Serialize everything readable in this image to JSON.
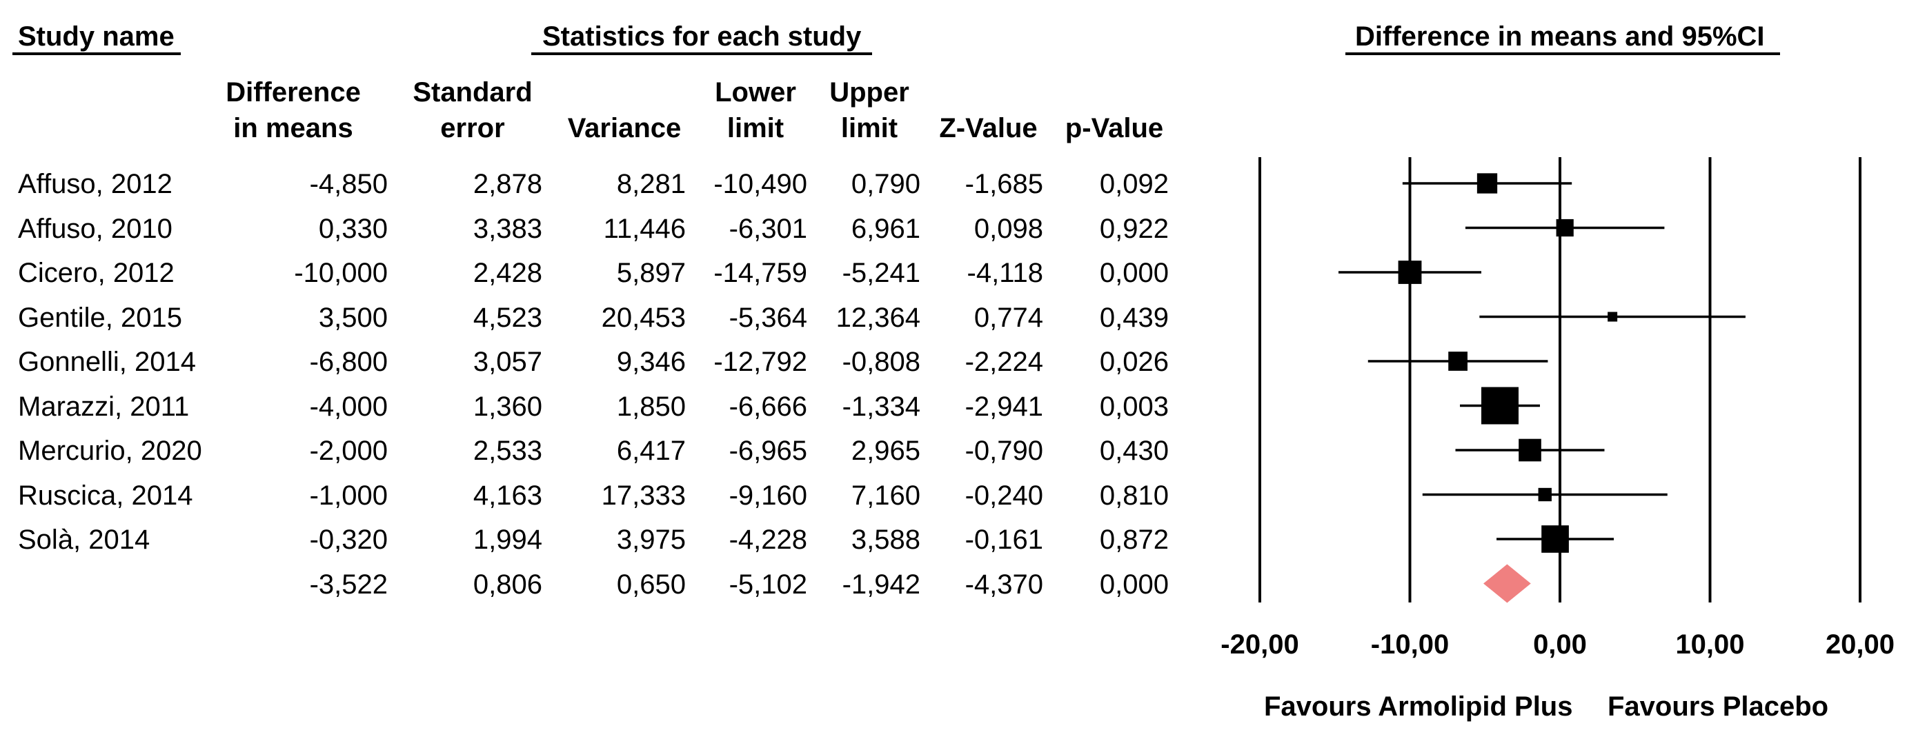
{
  "headers": {
    "study_name": "Study name",
    "statistics": "Statistics for each study",
    "forest": "Difference in means and 95%CI"
  },
  "columns": [
    {
      "line1": "Difference",
      "line2": "in means"
    },
    {
      "line1": "Standard",
      "line2": "error"
    },
    {
      "line1": "",
      "line2": "Variance"
    },
    {
      "line1": "Lower",
      "line2": "limit"
    },
    {
      "line1": "Upper",
      "line2": "limit"
    },
    {
      "line1": "",
      "line2": "Z-Value"
    },
    {
      "line1": "",
      "line2": "p-Value"
    }
  ],
  "rows": [
    {
      "name": "Affuso, 2012",
      "diff": "-4,850",
      "se": "2,878",
      "var": "8,281",
      "lower": "-10,490",
      "upper": "0,790",
      "z": "-1,685",
      "p": "0,092"
    },
    {
      "name": "Affuso, 2010",
      "diff": "0,330",
      "se": "3,383",
      "var": "11,446",
      "lower": "-6,301",
      "upper": "6,961",
      "z": "0,098",
      "p": "0,922"
    },
    {
      "name": "Cicero, 2012",
      "diff": "-10,000",
      "se": "2,428",
      "var": "5,897",
      "lower": "-14,759",
      "upper": "-5,241",
      "z": "-4,118",
      "p": "0,000"
    },
    {
      "name": "Gentile, 2015",
      "diff": "3,500",
      "se": "4,523",
      "var": "20,453",
      "lower": "-5,364",
      "upper": "12,364",
      "z": "0,774",
      "p": "0,439"
    },
    {
      "name": "Gonnelli, 2014",
      "diff": "-6,800",
      "se": "3,057",
      "var": "9,346",
      "lower": "-12,792",
      "upper": "-0,808",
      "z": "-2,224",
      "p": "0,026"
    },
    {
      "name": "Marazzi, 2011",
      "diff": "-4,000",
      "se": "1,360",
      "var": "1,850",
      "lower": "-6,666",
      "upper": "-1,334",
      "z": "-2,941",
      "p": "0,003"
    },
    {
      "name": "Mercurio, 2020",
      "diff": "-2,000",
      "se": "2,533",
      "var": "6,417",
      "lower": "-6,965",
      "upper": "2,965",
      "z": "-0,790",
      "p": "0,430"
    },
    {
      "name": "Ruscica, 2014",
      "diff": "-1,000",
      "se": "4,163",
      "var": "17,333",
      "lower": "-9,160",
      "upper": "7,160",
      "z": "-0,240",
      "p": "0,810"
    },
    {
      "name": "Solà, 2014",
      "diff": "-0,320",
      "se": "1,994",
      "var": "3,975",
      "lower": "-4,228",
      "upper": "3,588",
      "z": "-0,161",
      "p": "0,872"
    }
  ],
  "summary": {
    "name": "",
    "diff": "-3,522",
    "se": "0,806",
    "var": "0,650",
    "lower": "-5,102",
    "upper": "-1,942",
    "z": "-4,370",
    "p": "0,000"
  },
  "chart_data": {
    "type": "scatter",
    "title": "Difference in means and 95%CI",
    "xlim": [
      -20,
      20
    ],
    "xticks": [
      -20,
      -10,
      0,
      10,
      20
    ],
    "xtick_labels": [
      "-20,00",
      "-10,00",
      "0,00",
      "10,00",
      "20,00"
    ],
    "grid": true,
    "studies": [
      {
        "name": "Affuso, 2012",
        "mean": -4.85,
        "lower": -10.49,
        "upper": 0.79,
        "weight": 8.281
      },
      {
        "name": "Affuso, 2010",
        "mean": 0.33,
        "lower": -6.301,
        "upper": 6.961,
        "weight": 11.446
      },
      {
        "name": "Cicero, 2012",
        "mean": -10.0,
        "lower": -14.759,
        "upper": -5.241,
        "weight": 5.897
      },
      {
        "name": "Gentile, 2015",
        "mean": 3.5,
        "lower": -5.364,
        "upper": 12.364,
        "weight": 20.453
      },
      {
        "name": "Gonnelli, 2014",
        "mean": -6.8,
        "lower": -12.792,
        "upper": -0.808,
        "weight": 9.346
      },
      {
        "name": "Marazzi, 2011",
        "mean": -4.0,
        "lower": -6.666,
        "upper": -1.334,
        "weight": 1.85
      },
      {
        "name": "Mercurio, 2020",
        "mean": -2.0,
        "lower": -6.965,
        "upper": 2.965,
        "weight": 6.417
      },
      {
        "name": "Ruscica, 2014",
        "mean": -1.0,
        "lower": -9.16,
        "upper": 7.16,
        "weight": 17.333
      },
      {
        "name": "Solà, 2014",
        "mean": -0.32,
        "lower": -4.228,
        "upper": 3.588,
        "weight": 3.975
      }
    ],
    "summary": {
      "mean": -3.522,
      "lower": -5.102,
      "upper": -1.942,
      "color": "#f08080"
    },
    "favours_left": "Favours Armolipid Plus",
    "favours_right": "Favours Placebo"
  }
}
